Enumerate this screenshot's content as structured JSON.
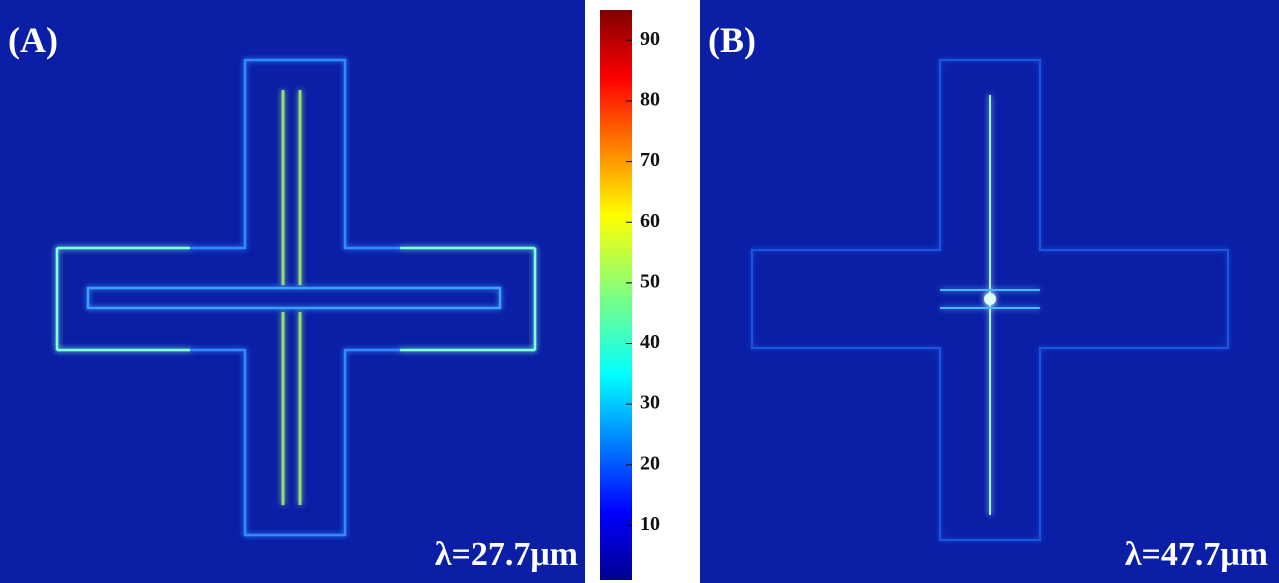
{
  "panels": [
    {
      "label": "(A)",
      "wavelength": "λ=27.7μm"
    },
    {
      "label": "(B)",
      "wavelength": "λ=47.7μm"
    }
  ],
  "colorbar": {
    "range": [
      1,
      95
    ],
    "ticks": [
      10,
      20,
      30,
      40,
      50,
      60,
      70,
      80,
      90
    ]
  }
}
